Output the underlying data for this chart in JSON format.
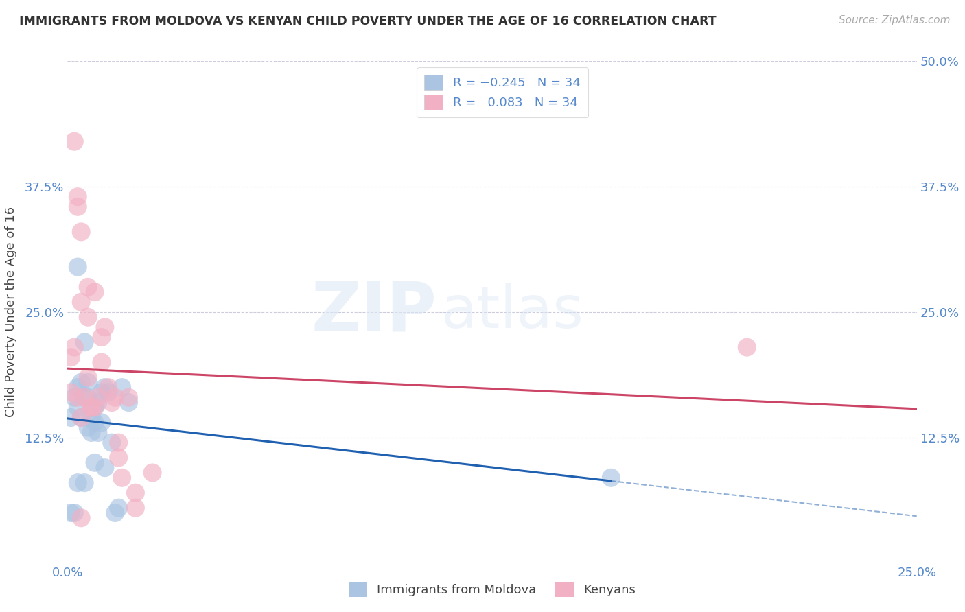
{
  "title": "IMMIGRANTS FROM MOLDOVA VS KENYAN CHILD POVERTY UNDER THE AGE OF 16 CORRELATION CHART",
  "source": "Source: ZipAtlas.com",
  "xlabel": "",
  "ylabel": "Child Poverty Under the Age of 16",
  "xlim": [
    0,
    0.25
  ],
  "ylim": [
    0,
    0.5
  ],
  "xticks": [
    0.0,
    0.05,
    0.1,
    0.15,
    0.2,
    0.25
  ],
  "yticks": [
    0.0,
    0.125,
    0.25,
    0.375,
    0.5
  ],
  "ytick_labels_left": [
    "",
    "12.5%",
    "25.0%",
    "37.5%",
    ""
  ],
  "ytick_labels_right": [
    "",
    "12.5%",
    "25.0%",
    "37.5%",
    "50.0%"
  ],
  "xtick_labels": [
    "0.0%",
    "",
    "",
    "",
    "",
    "25.0%"
  ],
  "legend_labels": [
    "Immigrants from Moldova",
    "Kenyans"
  ],
  "r_moldova": -0.245,
  "r_kenya": 0.083,
  "n_moldova": 34,
  "n_kenya": 34,
  "color_moldova": "#aac4e2",
  "color_kenya": "#f2b0c4",
  "line_color_moldova": "#2060b0",
  "line_color_kenya": "#cc4466",
  "background_color": "#ffffff",
  "grid_color": "#ccccdd",
  "title_color": "#333333",
  "axis_color": "#5588cc",
  "watermark_zip": "ZIP",
  "watermark_atlas": "atlas",
  "moldova_x": [
    0.001,
    0.001,
    0.002,
    0.002,
    0.003,
    0.003,
    0.003,
    0.004,
    0.004,
    0.005,
    0.005,
    0.006,
    0.006,
    0.006,
    0.007,
    0.007,
    0.008,
    0.008,
    0.009,
    0.009,
    0.01,
    0.01,
    0.011,
    0.011,
    0.012,
    0.013,
    0.014,
    0.015,
    0.016,
    0.018,
    0.003,
    0.005,
    0.008,
    0.16
  ],
  "moldova_y": [
    0.145,
    0.05,
    0.165,
    0.05,
    0.175,
    0.155,
    0.295,
    0.145,
    0.18,
    0.165,
    0.22,
    0.165,
    0.18,
    0.135,
    0.145,
    0.13,
    0.155,
    0.14,
    0.13,
    0.16,
    0.14,
    0.17,
    0.175,
    0.095,
    0.17,
    0.12,
    0.05,
    0.055,
    0.175,
    0.16,
    0.08,
    0.08,
    0.1,
    0.085
  ],
  "kenya_x": [
    0.001,
    0.001,
    0.002,
    0.003,
    0.003,
    0.004,
    0.004,
    0.005,
    0.006,
    0.006,
    0.007,
    0.008,
    0.008,
    0.009,
    0.01,
    0.011,
    0.012,
    0.013,
    0.014,
    0.015,
    0.016,
    0.018,
    0.02,
    0.025,
    0.002,
    0.003,
    0.004,
    0.006,
    0.007,
    0.01,
    0.015,
    0.02,
    0.004,
    0.2
  ],
  "kenya_y": [
    0.17,
    0.205,
    0.215,
    0.165,
    0.355,
    0.145,
    0.33,
    0.165,
    0.185,
    0.275,
    0.155,
    0.155,
    0.27,
    0.165,
    0.225,
    0.235,
    0.175,
    0.16,
    0.165,
    0.105,
    0.085,
    0.165,
    0.07,
    0.09,
    0.42,
    0.365,
    0.26,
    0.245,
    0.155,
    0.2,
    0.12,
    0.055,
    0.045,
    0.215
  ]
}
